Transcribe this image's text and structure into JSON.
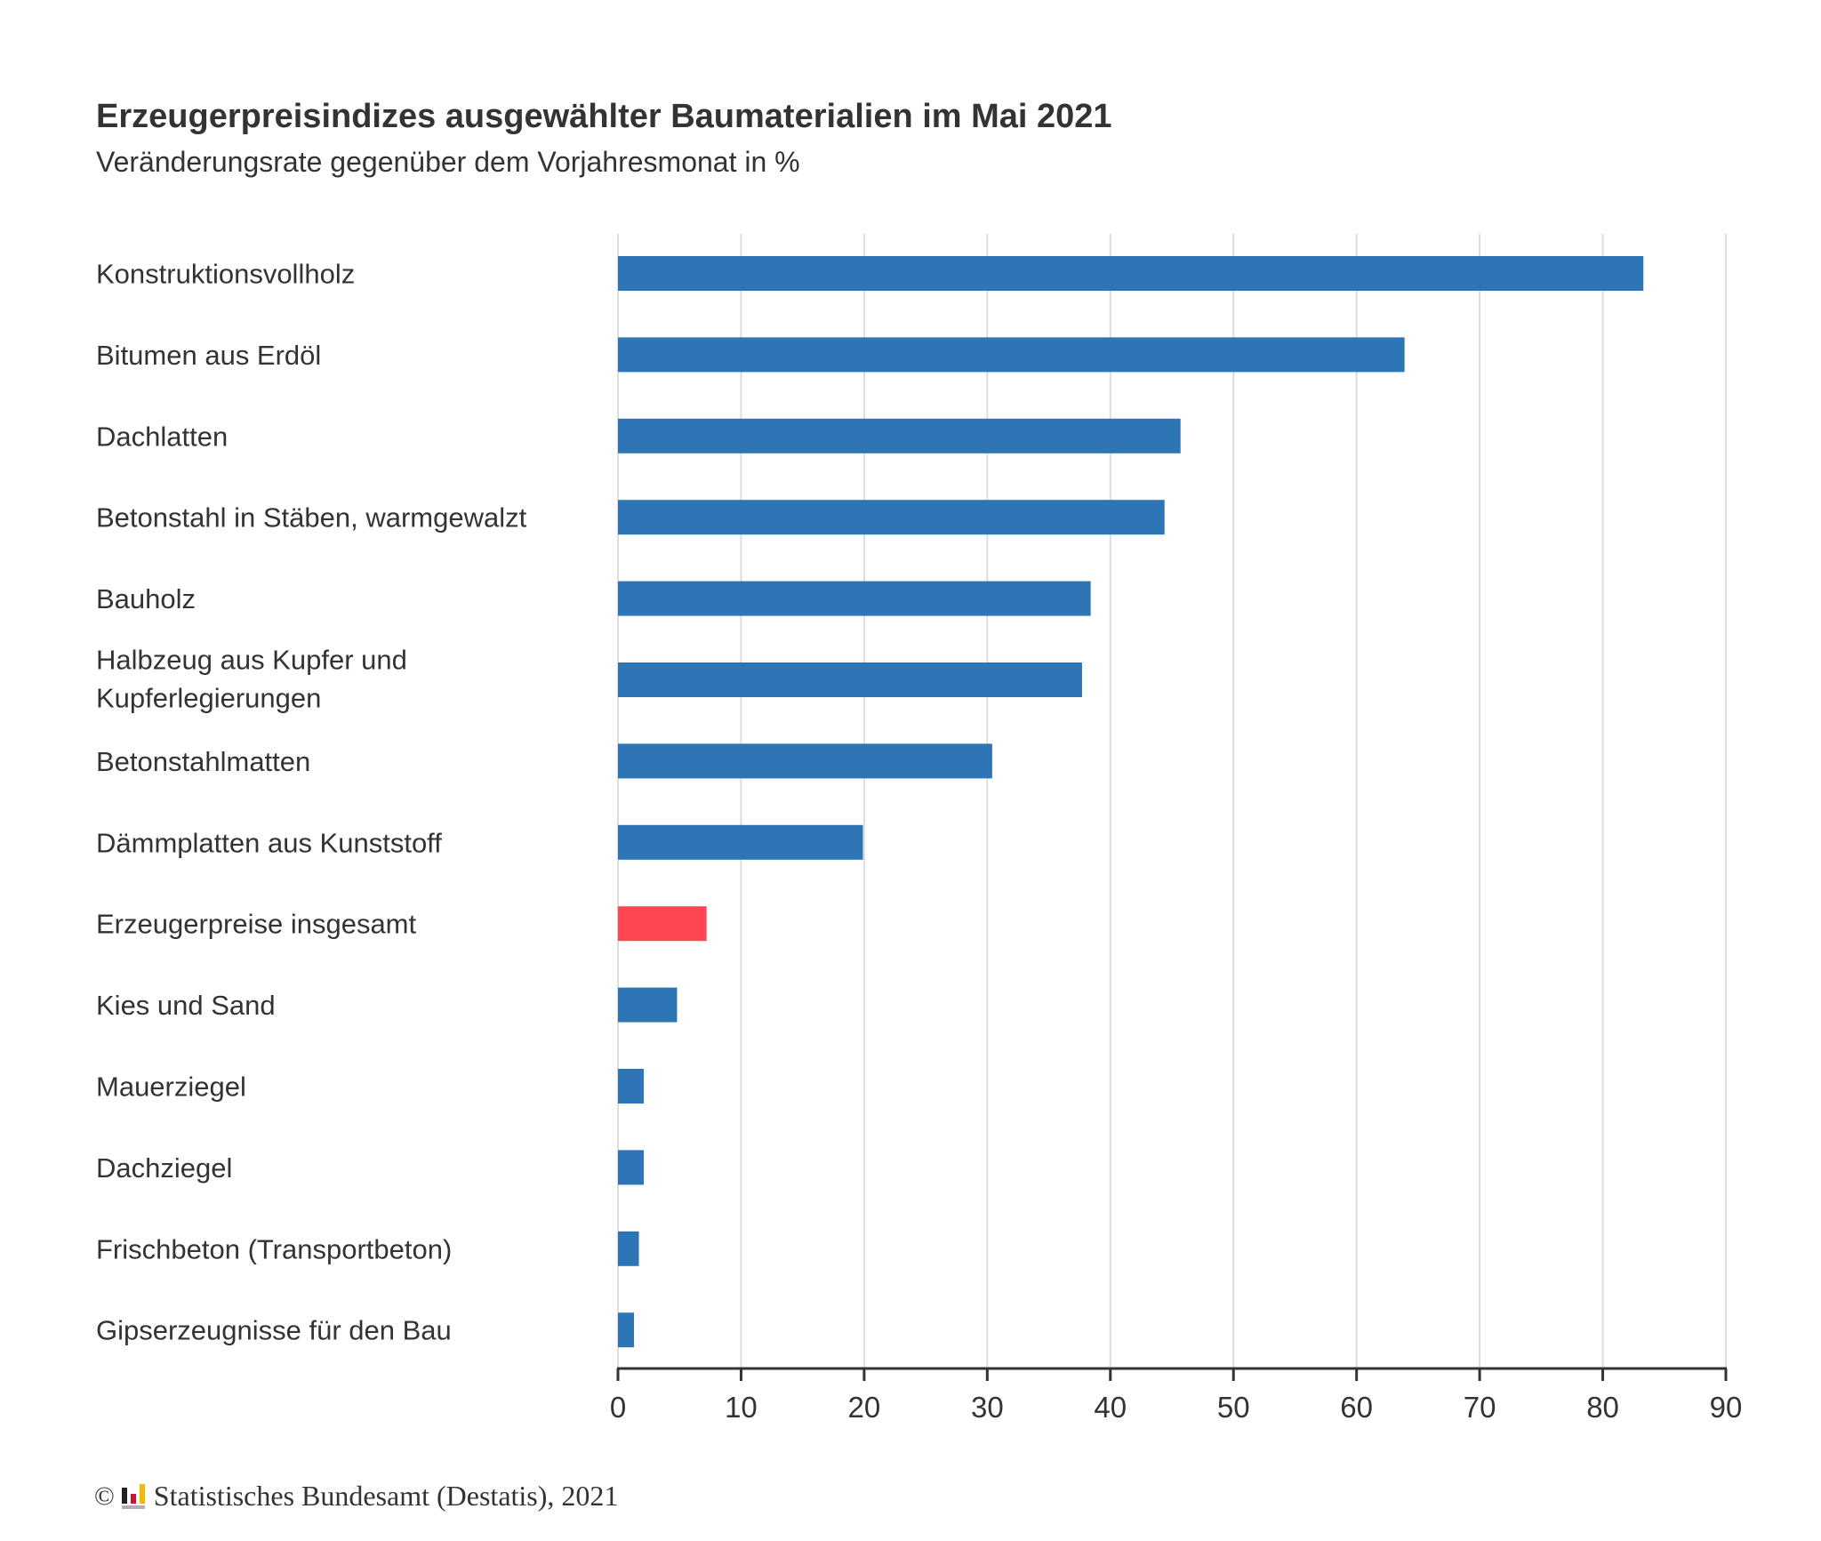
{
  "chart_data": {
    "type": "bar",
    "orientation": "horizontal",
    "title": "Erzeugerpreisindizes ausgewählter Baumaterialien im Mai 2021",
    "subtitle": "Veränderungsrate gegenüber dem Vorjahresmonat in %",
    "categories": [
      "Konstruktionsvollholz",
      "Bitumen aus Erdöl",
      "Dachlatten",
      "Betonstahl in Stäben, warmgewalzt",
      "Bauholz",
      "Halbzeug aus Kupfer und Kupferlegierungen",
      "Betonstahlmatten",
      "Dämmplatten aus Kunststoff",
      "Erzeugerpreise insgesamt",
      "Kies und Sand",
      "Mauerziegel",
      "Dachziegel",
      "Frischbeton (Transportbeton)",
      "Gipserzeugnisse für den Bau"
    ],
    "values": [
      83.3,
      63.9,
      45.7,
      44.4,
      38.4,
      37.7,
      30.4,
      19.9,
      7.2,
      4.8,
      2.1,
      2.1,
      1.7,
      1.3
    ],
    "highlight_index": 8,
    "xlim": [
      0,
      90
    ],
    "xticks": [
      "0",
      "10",
      "20",
      "30",
      "40",
      "50",
      "60",
      "70",
      "80",
      "90"
    ],
    "grid": true,
    "colors": {
      "bar": "#2e75b6",
      "highlight": "#ff4651",
      "grid": "#dddddd",
      "axis": "#333333"
    }
  },
  "footer": {
    "copyright_symbol": "©",
    "source": "Statistisches Bundesamt (Destatis), 2021"
  }
}
